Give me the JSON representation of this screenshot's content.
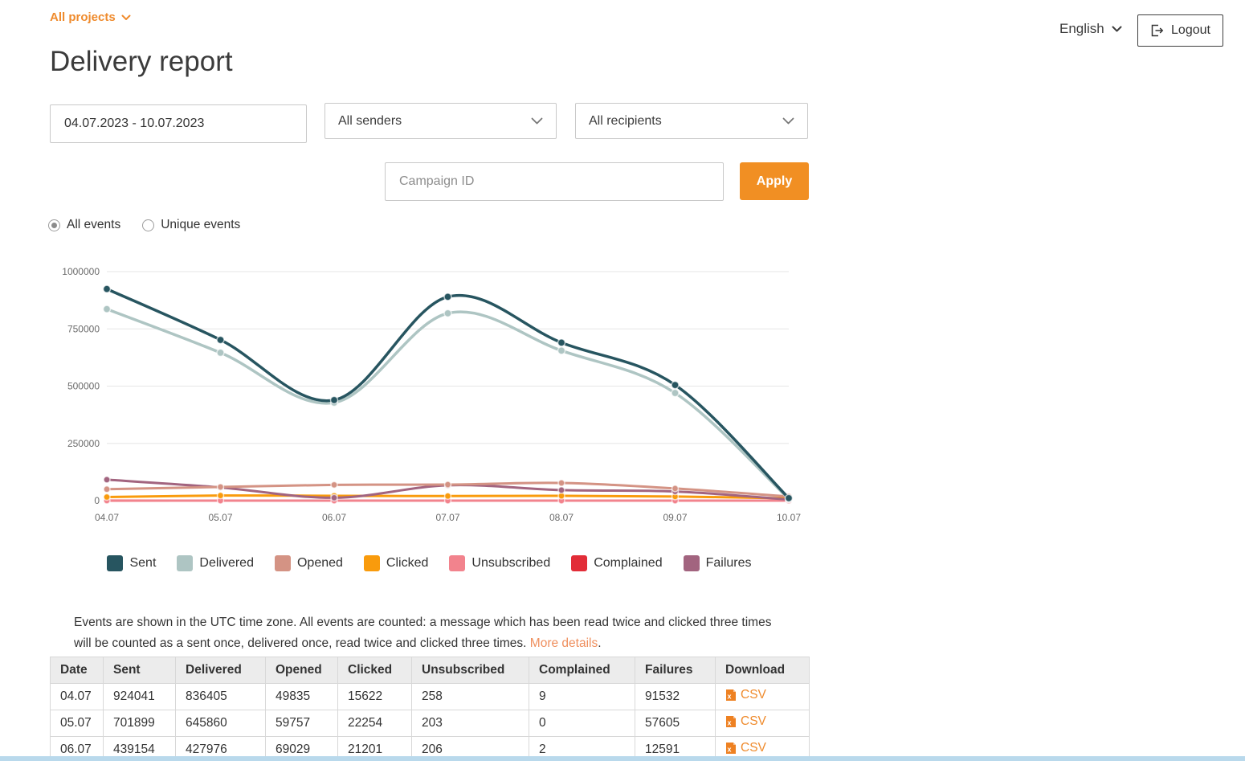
{
  "header": {
    "project_selector": "All projects",
    "language": "English",
    "logout_label": "Logout"
  },
  "page": {
    "title": "Delivery report"
  },
  "filters": {
    "date_range": "04.07.2023 - 10.07.2023",
    "senders_value": "All senders",
    "recipients_value": "All recipients",
    "campaign_placeholder": "Campaign ID",
    "apply_label": "Apply"
  },
  "event_toggle": {
    "options": [
      {
        "label": "All events",
        "selected": true
      },
      {
        "label": "Unique events",
        "selected": false
      }
    ]
  },
  "chart_data": {
    "type": "line",
    "title": "",
    "xlabel": "",
    "ylabel": "",
    "x": [
      "04.07",
      "05.07",
      "06.07",
      "07.07",
      "08.07",
      "09.07",
      "10.07"
    ],
    "ylim": [
      0,
      1000000
    ],
    "yticks": [
      0,
      250000,
      500000,
      750000,
      1000000
    ],
    "grid": true,
    "legend_position": "bottom",
    "series": [
      {
        "name": "Sent",
        "color": "#275560",
        "values": [
          924041,
          701899,
          439154,
          890000,
          690000,
          505000,
          11000
        ]
      },
      {
        "name": "Delivered",
        "color": "#aec5c3",
        "values": [
          836405,
          645860,
          427976,
          818000,
          655000,
          470000,
          8000
        ]
      },
      {
        "name": "Opened",
        "color": "#d49384",
        "values": [
          49835,
          59757,
          69029,
          70000,
          77000,
          53000,
          18000
        ]
      },
      {
        "name": "Clicked",
        "color": "#f99b0c",
        "values": [
          15622,
          22254,
          21201,
          20000,
          21000,
          18000,
          10000
        ]
      },
      {
        "name": "Unsubscribed",
        "color": "#f2838d",
        "values": [
          258,
          203,
          206,
          200,
          200,
          200,
          100
        ]
      },
      {
        "name": "Complained",
        "color": "#e22d38",
        "values": [
          9,
          0,
          2,
          0,
          0,
          0,
          0
        ]
      },
      {
        "name": "Failures",
        "color": "#a2647f",
        "values": [
          91532,
          57605,
          12591,
          67000,
          46000,
          40000,
          5000
        ]
      }
    ]
  },
  "note": {
    "text": "Events are shown in the UTC time zone. All events are counted: a message which has been read twice and clicked three times will be counted as a sent once, delivered once, read twice and clicked three times. ",
    "link_label": "More details",
    "suffix": "."
  },
  "table": {
    "columns": [
      "Date",
      "Sent",
      "Delivered",
      "Opened",
      "Clicked",
      "Unsubscribed",
      "Complained",
      "Failures",
      "Download"
    ],
    "csv_label": "CSV",
    "rows": [
      [
        "04.07",
        "924041",
        "836405",
        "49835",
        "15622",
        "258",
        "9",
        "91532"
      ],
      [
        "05.07",
        "701899",
        "645860",
        "59757",
        "22254",
        "203",
        "0",
        "57605"
      ],
      [
        "06.07",
        "439154",
        "427976",
        "69029",
        "21201",
        "206",
        "2",
        "12591"
      ]
    ]
  },
  "colors": {
    "accent_orange": "#ef8b2d",
    "apply_button": "#f18f23",
    "link_salmon": "#ef8f5e",
    "table_header_bg": "#ececec",
    "grid_line": "#e6e6e6",
    "bottom_strip": "#b9d9ec"
  }
}
